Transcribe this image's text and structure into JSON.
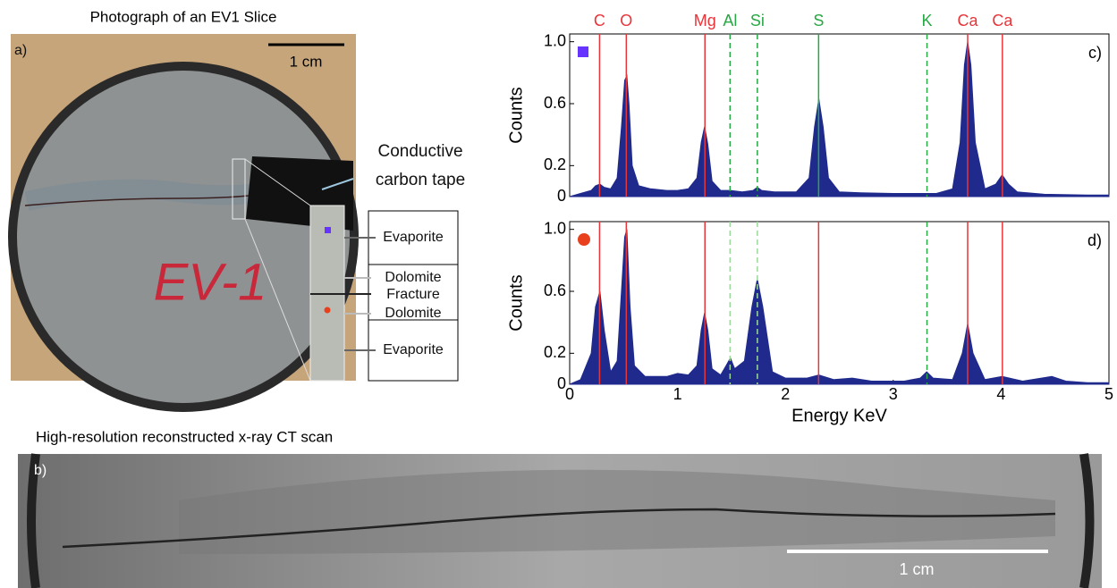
{
  "panel_a": {
    "title": "Photograph of an EV1 Slice",
    "label": "a)",
    "scale": "1 cm",
    "sample_label": "EV-1",
    "tape_label": [
      "Conductive",
      "carbon tape"
    ],
    "layers": [
      "Evaporite",
      "Dolomite",
      "Fracture",
      "Dolomite",
      "Evaporite"
    ]
  },
  "panel_b": {
    "title": "High-resolution reconstructed x-ray CT scan",
    "label": "b)",
    "scale": "1 cm"
  },
  "chart_data": [
    {
      "type": "area",
      "panel_label": "c)",
      "ylabel": "Counts",
      "marker": "square",
      "marker_color": "#6633ff",
      "color": "#1f2a8c",
      "xlim": [
        0,
        5
      ],
      "ylim": [
        0,
        1.05
      ],
      "yticks": [
        0,
        0.2,
        0.6,
        {
          "value": 1,
          "label": "1.0"
        }
      ],
      "element_lines": [
        {
          "label": "C",
          "value": 0.277,
          "color": "#e8353a",
          "dashed": false
        },
        {
          "label": "O",
          "value": 0.525,
          "color": "#e8353a",
          "dashed": false
        },
        {
          "label": "Mg",
          "value": 1.254,
          "color": "#e8353a",
          "dashed": false
        },
        {
          "label": "Al",
          "value": 1.487,
          "color": "#27a844",
          "dashed": true
        },
        {
          "label": "Si",
          "value": 1.74,
          "color": "#27a844",
          "dashed": true
        },
        {
          "label": "S",
          "value": 2.308,
          "color": "#27a844",
          "dashed": false
        },
        {
          "label": "K",
          "value": 3.313,
          "color": "#27a844",
          "dashed": true
        },
        {
          "label": "Ca",
          "value": 3.69,
          "color": "#e8353a",
          "dashed": false
        },
        {
          "label": "Ca",
          "value": 4.012,
          "color": "#e8353a",
          "dashed": false
        }
      ],
      "x": [
        0,
        0.1,
        0.2,
        0.24,
        0.28,
        0.32,
        0.38,
        0.44,
        0.48,
        0.51,
        0.53,
        0.55,
        0.58,
        0.64,
        0.75,
        0.9,
        1.0,
        1.1,
        1.18,
        1.22,
        1.25,
        1.28,
        1.32,
        1.4,
        1.49,
        1.6,
        1.7,
        1.74,
        1.78,
        1.9,
        2.1,
        2.22,
        2.27,
        2.31,
        2.35,
        2.4,
        2.5,
        2.7,
        3.0,
        3.2,
        3.3,
        3.4,
        3.55,
        3.62,
        3.66,
        3.69,
        3.72,
        3.76,
        3.85,
        3.95,
        4.01,
        4.07,
        4.15,
        4.4,
        4.8,
        5
      ],
      "values": [
        0,
        0.02,
        0.04,
        0.07,
        0.08,
        0.06,
        0.05,
        0.12,
        0.45,
        0.75,
        0.78,
        0.6,
        0.2,
        0.07,
        0.05,
        0.04,
        0.04,
        0.05,
        0.12,
        0.35,
        0.45,
        0.34,
        0.1,
        0.04,
        0.04,
        0.03,
        0.04,
        0.06,
        0.04,
        0.03,
        0.03,
        0.12,
        0.45,
        0.63,
        0.45,
        0.12,
        0.03,
        0.025,
        0.02,
        0.02,
        0.02,
        0.02,
        0.05,
        0.35,
        0.85,
        1.0,
        0.85,
        0.35,
        0.05,
        0.08,
        0.14,
        0.08,
        0.03,
        0.015,
        0.01,
        0.01
      ]
    },
    {
      "type": "area",
      "panel_label": "d)",
      "ylabel": "Counts",
      "xlabel": "Energy KeV",
      "marker": "circle",
      "marker_color": "#e8401c",
      "color": "#1f2a8c",
      "xlim": [
        0,
        5
      ],
      "ylim": [
        0,
        1.05
      ],
      "xticks": [
        0,
        1,
        2,
        3,
        4,
        5
      ],
      "yticks": [
        0,
        0.2,
        0.6,
        {
          "value": 1,
          "label": "1.0"
        }
      ],
      "element_lines": [
        {
          "value": 0.277,
          "color": "#e8353a",
          "dashed": false
        },
        {
          "value": 0.525,
          "color": "#e8353a",
          "dashed": false
        },
        {
          "value": 1.254,
          "color": "#e8353a",
          "dashed": false
        },
        {
          "value": 1.487,
          "color": "#9bd99b",
          "dashed": true
        },
        {
          "value": 1.74,
          "color": "#9bd99b",
          "dashed": true
        },
        {
          "value": 2.308,
          "color": "#e8353a",
          "dashed": false
        },
        {
          "value": 3.313,
          "color": "#27a844",
          "dashed": true
        },
        {
          "value": 3.69,
          "color": "#e8353a",
          "dashed": false
        },
        {
          "value": 4.012,
          "color": "#e8353a",
          "dashed": false
        }
      ],
      "x": [
        0,
        0.1,
        0.2,
        0.24,
        0.28,
        0.32,
        0.38,
        0.44,
        0.48,
        0.51,
        0.53,
        0.56,
        0.6,
        0.7,
        0.9,
        1.0,
        1.1,
        1.18,
        1.22,
        1.25,
        1.28,
        1.32,
        1.4,
        1.45,
        1.49,
        1.53,
        1.62,
        1.69,
        1.74,
        1.79,
        1.88,
        2.0,
        2.2,
        2.31,
        2.45,
        2.62,
        2.8,
        3.1,
        3.25,
        3.31,
        3.37,
        3.55,
        3.64,
        3.69,
        3.74,
        3.85,
        4.01,
        4.2,
        4.47,
        4.6,
        4.8,
        5
      ],
      "values": [
        0,
        0.03,
        0.2,
        0.5,
        0.6,
        0.35,
        0.08,
        0.15,
        0.6,
        0.95,
        1.0,
        0.5,
        0.12,
        0.05,
        0.05,
        0.07,
        0.06,
        0.12,
        0.35,
        0.46,
        0.35,
        0.1,
        0.06,
        0.12,
        0.17,
        0.1,
        0.15,
        0.5,
        0.68,
        0.5,
        0.08,
        0.04,
        0.04,
        0.06,
        0.03,
        0.04,
        0.02,
        0.02,
        0.04,
        0.08,
        0.04,
        0.03,
        0.2,
        0.39,
        0.2,
        0.03,
        0.05,
        0.02,
        0.05,
        0.02,
        0.01,
        0.01
      ]
    }
  ]
}
